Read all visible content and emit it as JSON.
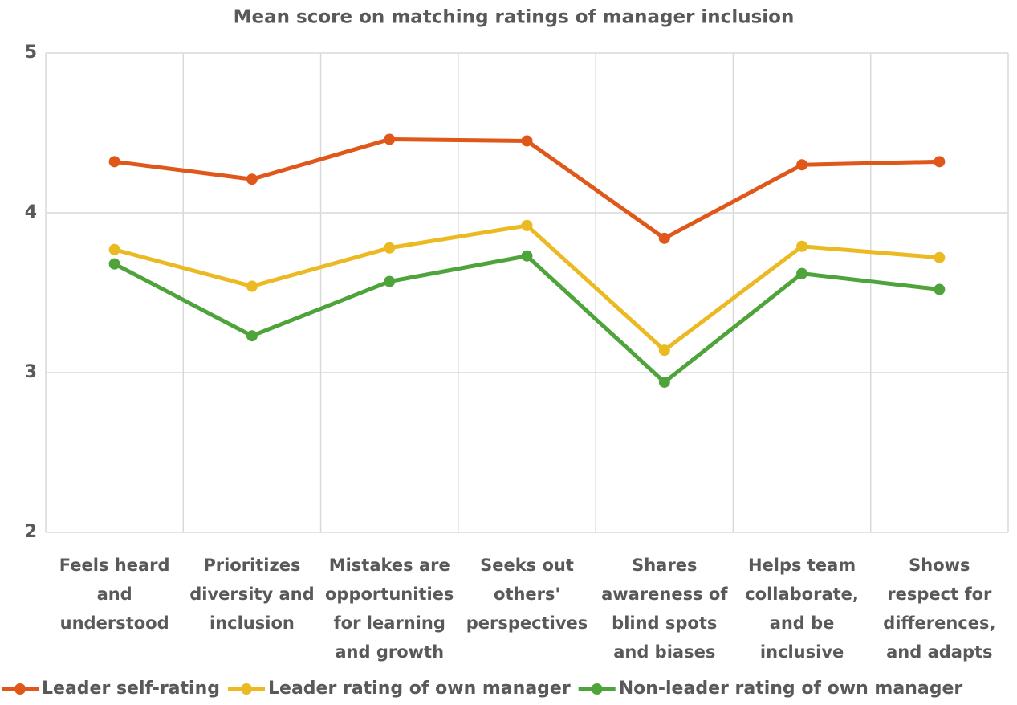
{
  "chart_data": {
    "type": "line",
    "title": "Mean score on matching ratings of manager inclusion",
    "categories": [
      "Feels heard and understood",
      "Prioritizes diversity and inclusion",
      "Mistakes are opportunities for learning and growth",
      "Seeks out others' perspectives",
      "Shares awareness of blind spots and biases",
      "Helps team collaborate, and be inclusive",
      "Shows respect for differences, and adapts"
    ],
    "series": [
      {
        "name": "Leader self-rating",
        "color": "#e0571a",
        "values": [
          4.32,
          4.21,
          4.46,
          4.45,
          3.84,
          4.3,
          4.32
        ]
      },
      {
        "name": "Leader rating of own manager",
        "color": "#ebb921",
        "values": [
          3.77,
          3.54,
          3.78,
          3.92,
          3.14,
          3.79,
          3.72
        ]
      },
      {
        "name": "Non-leader rating of own manager",
        "color": "#4fa33b",
        "values": [
          3.68,
          3.23,
          3.57,
          3.73,
          2.94,
          3.62,
          3.52
        ]
      }
    ],
    "ylim": [
      2,
      5
    ],
    "yticks": [
      2,
      3,
      4,
      5
    ],
    "grid": true,
    "legend": "bottom"
  }
}
